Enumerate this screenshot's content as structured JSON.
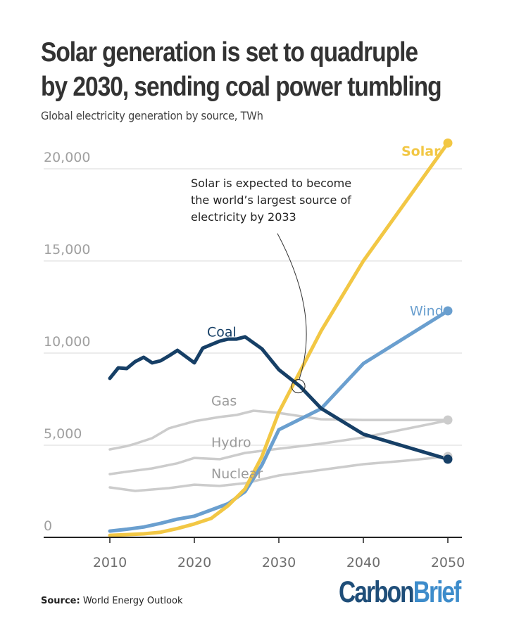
{
  "header": {
    "title_line1": "Solar generation is set to quadruple",
    "title_line2": "by 2030, sending coal power tumbling",
    "subtitle": "Global electricity generation by source, TWh"
  },
  "footer": {
    "source_label": "Source:",
    "source_text": "World Energy Outlook",
    "logo_part1": "Carbon",
    "logo_part2": "Brief"
  },
  "colors": {
    "solar": "#f2c744",
    "wind": "#6a9fcf",
    "coal": "#163f66",
    "other": "#cccccc",
    "grid": "#e6e6e6",
    "axis": "#222222",
    "logo_dark": "#1f4e79",
    "logo_light": "#3d8ccb"
  },
  "chart_data": {
    "type": "line",
    "title": "Solar generation is set to quadruple by 2030, sending coal power tumbling",
    "subtitle": "Global electricity generation by source, TWh",
    "xlabel": "",
    "ylabel": "TWh",
    "xlim": [
      2002,
      2051.5
    ],
    "ylim": [
      0,
      21500
    ],
    "grid": true,
    "xticks": [
      2010,
      2020,
      2030,
      2040,
      2050
    ],
    "xtick_labels": [
      "2010",
      "2020",
      "2030",
      "2040",
      "2050"
    ],
    "yticks": [
      0,
      5000,
      10000,
      15000,
      20000
    ],
    "ytick_labels": [
      "0",
      "5,000",
      "10,000",
      "15,000",
      "20,000"
    ],
    "legend": "inline labels",
    "series": [
      {
        "name": "Solar",
        "key": "solar",
        "x": [
          2010,
          2012,
          2014,
          2016,
          2018,
          2020,
          2022,
          2024,
          2026,
          2028,
          2030,
          2035,
          2040,
          2050
        ],
        "values": [
          110,
          150,
          190,
          280,
          480,
          730,
          1030,
          1720,
          2630,
          4390,
          6790,
          11200,
          15000,
          21400
        ]
      },
      {
        "name": "Wind",
        "key": "wind",
        "x": [
          2010,
          2012,
          2014,
          2016,
          2018,
          2020,
          2022,
          2024,
          2026,
          2028,
          2030,
          2035,
          2040,
          2050
        ],
        "values": [
          340,
          440,
          560,
          760,
          990,
          1150,
          1490,
          1830,
          2480,
          3930,
          5840,
          6980,
          9430,
          12290
        ]
      },
      {
        "name": "Coal",
        "key": "coal",
        "x": [
          2010,
          2011,
          2012,
          2013,
          2014,
          2015,
          2016,
          2017,
          2018,
          2019,
          2020,
          2021,
          2022,
          2023,
          2024,
          2025,
          2026,
          2028,
          2030,
          2032.5,
          2035,
          2040,
          2050
        ],
        "values": [
          8630,
          9200,
          9160,
          9540,
          9770,
          9470,
          9580,
          9850,
          10150,
          9810,
          9470,
          10270,
          10460,
          10650,
          10760,
          10760,
          10880,
          10230,
          9100,
          8200,
          7000,
          5600,
          4240
        ]
      },
      {
        "name": "Gas",
        "key": "other",
        "x": [
          2010,
          2012,
          2013,
          2015,
          2017,
          2020,
          2023,
          2025,
          2027,
          2030,
          2035,
          2040,
          2050
        ],
        "values": [
          4770,
          4950,
          5080,
          5380,
          5920,
          6300,
          6530,
          6640,
          6870,
          6750,
          6410,
          6370,
          6370
        ]
      },
      {
        "name": "Hydro",
        "key": "other",
        "x": [
          2010,
          2012,
          2015,
          2018,
          2020,
          2023,
          2026,
          2030,
          2035,
          2040,
          2050
        ],
        "values": [
          3430,
          3560,
          3740,
          4020,
          4310,
          4240,
          4580,
          4810,
          5080,
          5420,
          6340
        ]
      },
      {
        "name": "Nuclear",
        "key": "other",
        "x": [
          2010,
          2013,
          2017,
          2020,
          2023,
          2026,
          2030,
          2035,
          2040,
          2045,
          2050
        ],
        "values": [
          2710,
          2520,
          2670,
          2860,
          2790,
          2940,
          3360,
          3660,
          3970,
          4160,
          4390
        ]
      }
    ],
    "series_labels": [
      {
        "name": "Solar",
        "text": "Solar",
        "at_x": 2044.5,
        "at_y": 20700,
        "color_key": "solar",
        "bold": true
      },
      {
        "name": "Wind",
        "text": "Wind",
        "at_x": 2045.5,
        "at_y": 12050,
        "color_key": "wind",
        "bold": false
      },
      {
        "name": "Coal",
        "text": "Coal",
        "at_x": 2021.5,
        "at_y": 10900,
        "color_key": "coal",
        "bold": false
      },
      {
        "name": "Gas",
        "text": "Gas",
        "at_x": 2022,
        "at_y": 7150,
        "color_key": "other_text",
        "bold": false
      },
      {
        "name": "Hydro",
        "text": "Hydro",
        "at_x": 2022,
        "at_y": 4900,
        "color_key": "other_text",
        "bold": false
      },
      {
        "name": "Nuclear",
        "text": "Nuclear",
        "at_x": 2022,
        "at_y": 3200,
        "color_key": "other_text",
        "bold": false
      }
    ],
    "end_markers": [
      "Solar",
      "Wind",
      "Coal",
      "Gas",
      "Nuclear"
    ],
    "annotation": {
      "lines": [
        "Solar is expected to become",
        "the world’s largest source of",
        "electricity by 2033"
      ],
      "target_x": 2032.3,
      "target_y": 8200
    }
  }
}
